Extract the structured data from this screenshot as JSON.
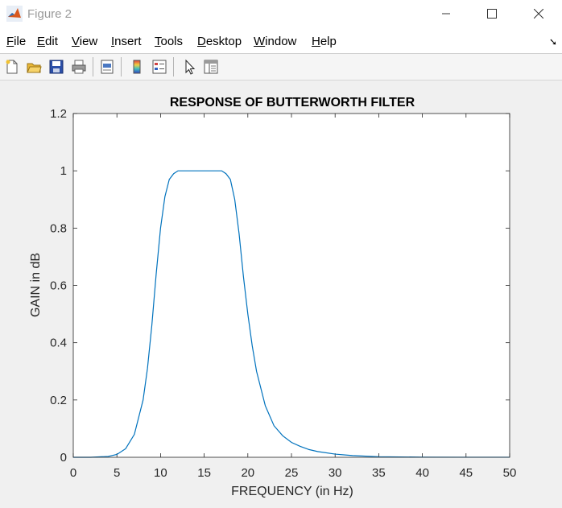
{
  "window": {
    "title": "Figure 2",
    "minimize_glyph": "—",
    "maximize_glyph": "☐",
    "close_glyph": "✕"
  },
  "menu": {
    "items": [
      "File",
      "Edit",
      "View",
      "Insert",
      "Tools",
      "Desktop",
      "Window",
      "Help"
    ],
    "dock_glyph": "➘"
  },
  "toolbar": {
    "icons": [
      "new-figure-icon",
      "open-file-icon",
      "save-icon",
      "print-icon",
      "print-preview-icon",
      "colorbar-icon",
      "legend-icon",
      "pointer-icon",
      "property-editor-icon"
    ]
  },
  "chart_data": {
    "type": "line",
    "title": "RESPONSE OF BUTTERWORTH FILTER",
    "xlabel": "FREQUENCY (in Hz)",
    "ylabel": "GAIN in dB",
    "xlim": [
      0,
      50
    ],
    "ylim": [
      0,
      1.2
    ],
    "xticks": [
      "0",
      "5",
      "10",
      "15",
      "20",
      "25",
      "30",
      "35",
      "40",
      "45",
      "50"
    ],
    "yticks": [
      "0",
      "0.2",
      "0.4",
      "0.6",
      "0.8",
      "1",
      "1.2"
    ],
    "grid": false,
    "line_color": "#0072bd",
    "series": [
      {
        "x": [
          0,
          2,
          4,
          5,
          6,
          7,
          8,
          8.5,
          9,
          9.5,
          10,
          10.5,
          11,
          11.5,
          12,
          13,
          14,
          15,
          16,
          17,
          17.5,
          18,
          18.5,
          19,
          19.5,
          20,
          20.5,
          21,
          22,
          23,
          24,
          25,
          26,
          27,
          28,
          30,
          32,
          35,
          40,
          45,
          50
        ],
        "y": [
          0,
          0,
          0.003,
          0.01,
          0.03,
          0.08,
          0.2,
          0.31,
          0.46,
          0.64,
          0.8,
          0.91,
          0.97,
          0.99,
          1.0,
          1.0,
          1.0,
          1.0,
          1.0,
          1.0,
          0.99,
          0.97,
          0.9,
          0.78,
          0.63,
          0.5,
          0.39,
          0.3,
          0.18,
          0.11,
          0.075,
          0.052,
          0.038,
          0.027,
          0.02,
          0.011,
          0.006,
          0.002,
          0.0005,
          0.0002,
          0.0001
        ]
      }
    ]
  }
}
